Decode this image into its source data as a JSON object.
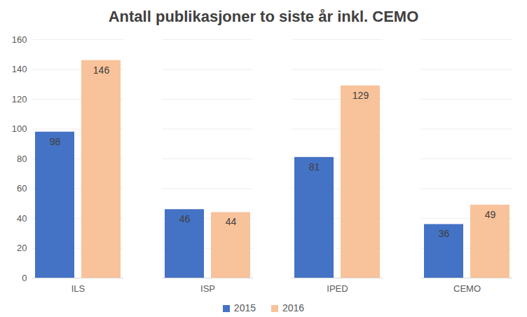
{
  "chart_data": {
    "type": "bar",
    "title": "Antall publikasjoner to siste år inkl. CEMO",
    "categories": [
      "ILS",
      "ISP",
      "IPED",
      "CEMO"
    ],
    "series": [
      {
        "name": "2015",
        "color": "#4472c4",
        "values": [
          98,
          46,
          81,
          36
        ]
      },
      {
        "name": "2016",
        "color": "#f8c29a",
        "values": [
          146,
          44,
          129,
          49
        ]
      }
    ],
    "ylim": [
      0,
      160
    ],
    "yticks": [
      0,
      20,
      40,
      60,
      80,
      100,
      120,
      140,
      160
    ],
    "grid": true,
    "legend": "bottom",
    "data_labels": true
  }
}
